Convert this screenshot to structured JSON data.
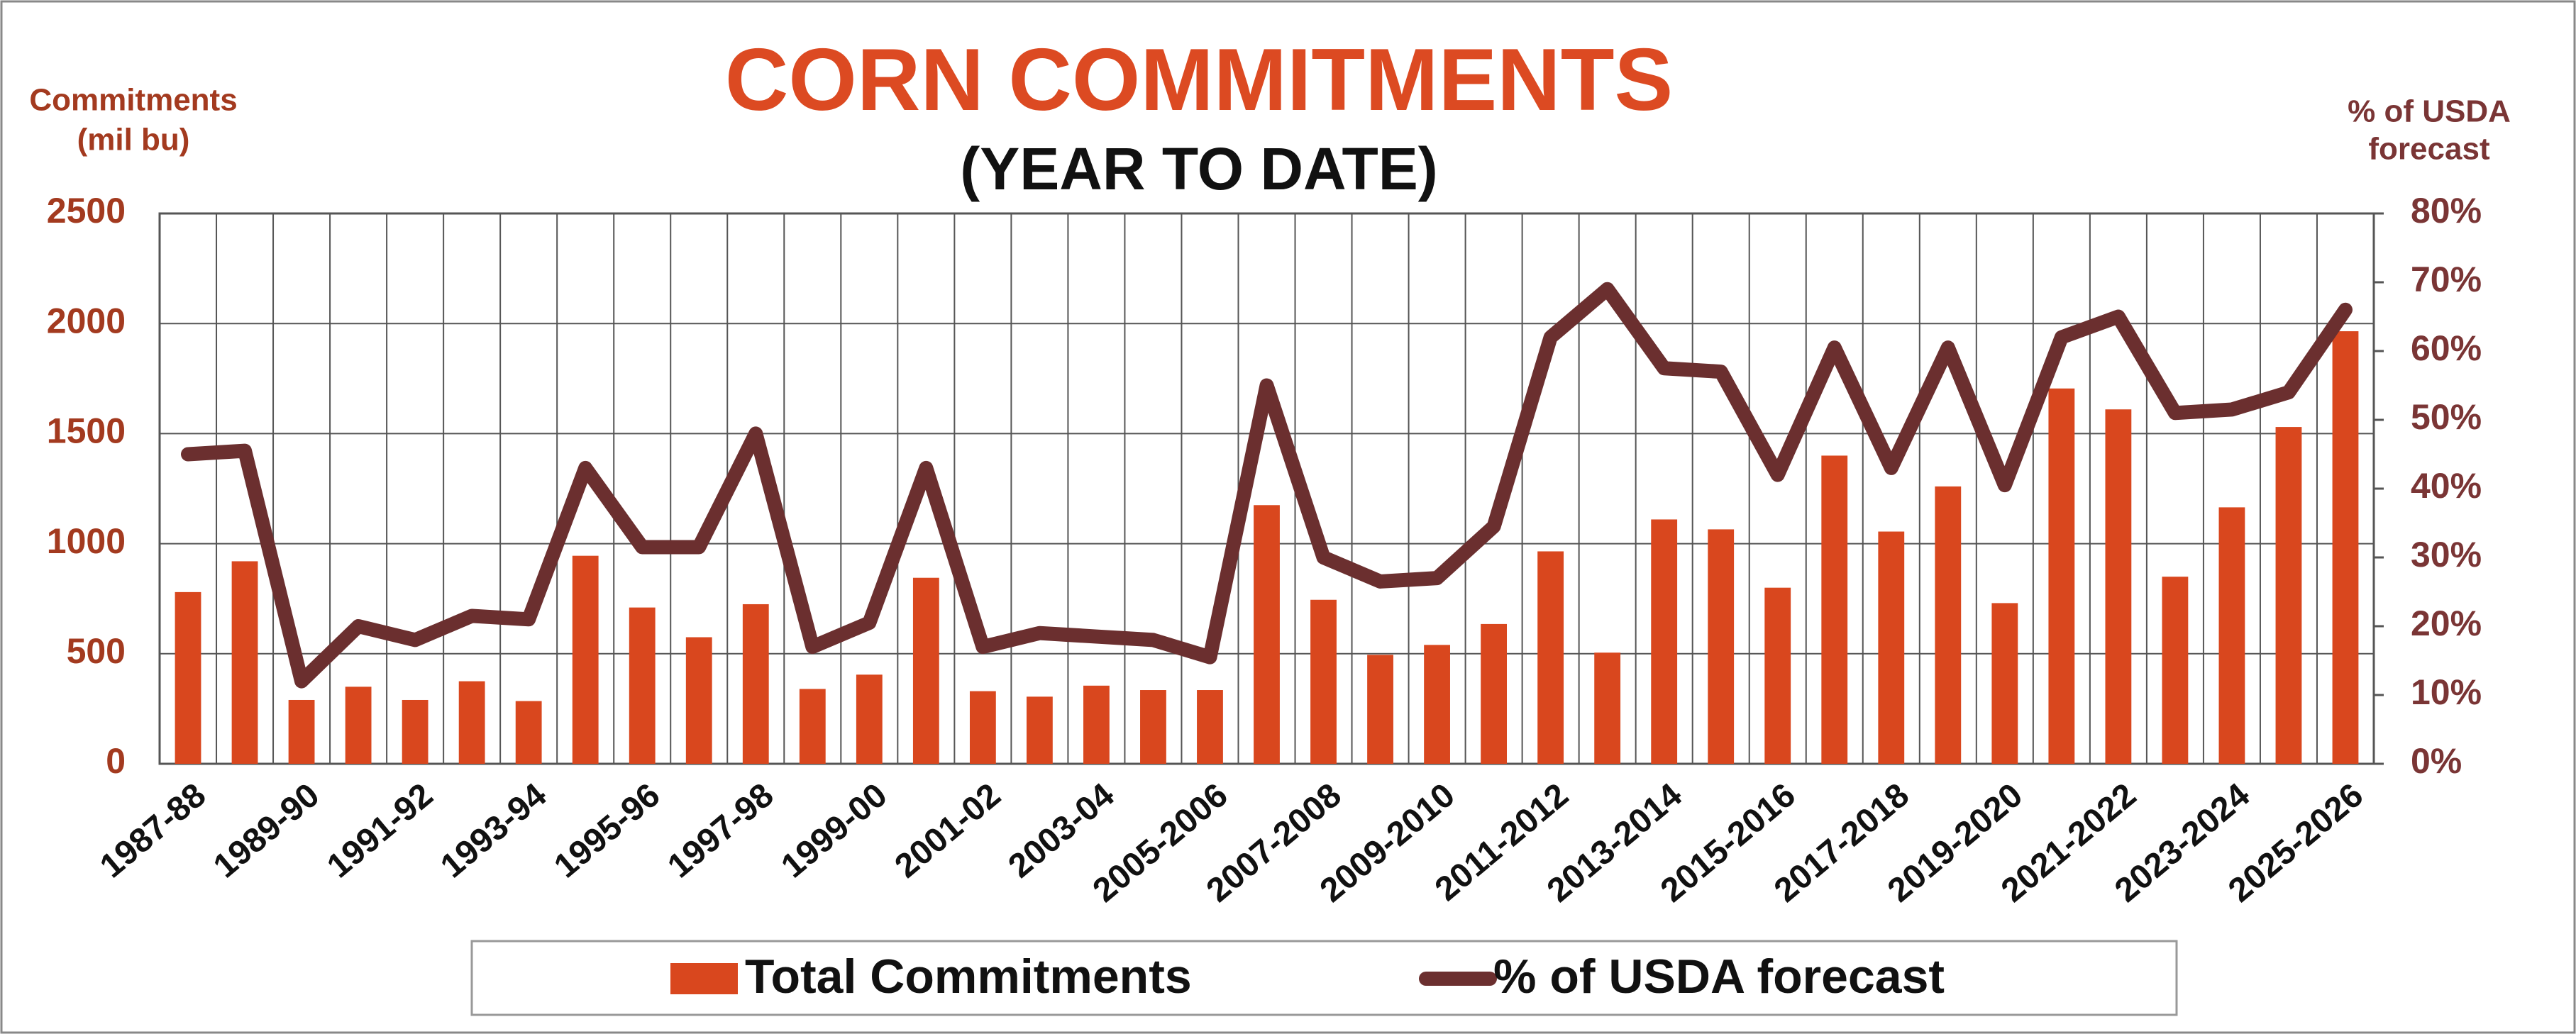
{
  "chart_data": {
    "type": "bar_line",
    "title": "CORN COMMITMENTS",
    "subtitle": "(YEAR TO DATE)",
    "y_label": [
      "Commitments",
      "(mil bu)"
    ],
    "y2_label": [
      "% of USDA",
      "forecast"
    ],
    "categories": [
      "1987-88",
      null,
      "1989-90",
      null,
      "1991-92",
      null,
      "1993-94",
      null,
      "1995-96",
      null,
      "1997-98",
      null,
      "1999-00",
      null,
      "2001-02",
      null,
      "2003-04",
      null,
      "2005-2006",
      null,
      "2007-2008",
      null,
      "2009-2010",
      null,
      "2011-2012",
      null,
      "2013-2014",
      null,
      "2015-2016",
      null,
      "2017-2018",
      null,
      "2019-2020",
      null,
      "2021-2022",
      null,
      "2023-2024",
      null,
      "2025-2026"
    ],
    "series": [
      {
        "name": "Total Commitments",
        "type": "bar",
        "color": "#d9471e",
        "axis": "y",
        "values": [
          780,
          920,
          290,
          350,
          290,
          375,
          285,
          945,
          710,
          575,
          725,
          340,
          405,
          845,
          330,
          305,
          355,
          335,
          335,
          1175,
          745,
          495,
          540,
          635,
          965,
          505,
          1110,
          1065,
          800,
          1400,
          1055,
          1260,
          730,
          1705,
          1610,
          850,
          1165,
          1530,
          1965
        ]
      },
      {
        "name": "% of USDA forecast",
        "type": "line",
        "color": "#6b2f2f",
        "axis": "y2",
        "values": [
          45,
          45.5,
          12,
          20,
          18,
          21.5,
          21,
          43,
          31.5,
          31.5,
          48,
          17,
          20.5,
          43,
          17,
          19,
          18.5,
          18,
          15.5,
          55,
          30,
          26.5,
          27,
          34.5,
          62,
          69,
          57.5,
          57,
          42,
          60.5,
          43,
          60.5,
          40.5,
          62,
          65,
          51,
          51.5,
          54,
          66
        ]
      }
    ],
    "ylim": [
      0,
      2500
    ],
    "yticks": [
      0,
      500,
      1000,
      1500,
      2000,
      2500
    ],
    "y2lim": [
      0,
      80
    ],
    "y2ticks": [
      {
        "value": 0,
        "label": "0%"
      },
      {
        "value": 10,
        "label": "10%"
      },
      {
        "value": 20,
        "label": "20%"
      },
      {
        "value": 30,
        "label": "30%"
      },
      {
        "value": 40,
        "label": "40%"
      },
      {
        "value": 50,
        "label": "50%"
      },
      {
        "value": 60,
        "label": "60%"
      },
      {
        "value": 70,
        "label": "70%"
      },
      {
        "value": 80,
        "label": "80%"
      }
    ],
    "grid": true,
    "legend": "bottom"
  }
}
